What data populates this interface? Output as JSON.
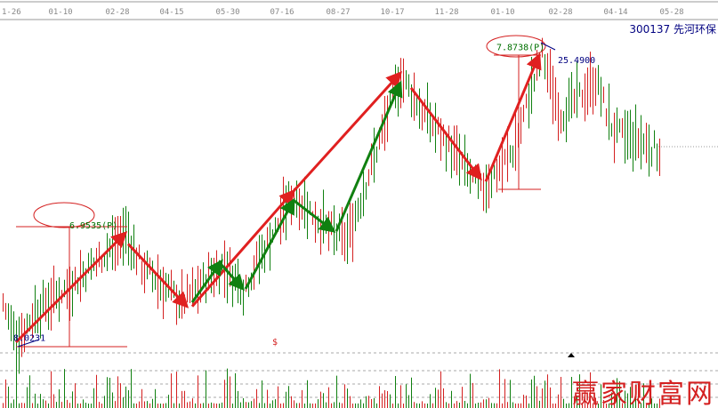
{
  "header": {
    "stock_title": "300137 先河环保"
  },
  "watermark": "赢家财富网",
  "chart_data": {
    "type": "candlestick",
    "x_ticks": [
      "1-26",
      "01-10",
      "02-28",
      "04-15",
      "05-30",
      "07-16",
      "08-27",
      "10-17",
      "11-28",
      "01-10",
      "02-28",
      "04-14",
      "05-28"
    ],
    "price_path": [
      {
        "bar": 1,
        "price": 10.45
      },
      {
        "bar": 6,
        "price": 8.02
      },
      {
        "bar": 13,
        "price": 9.91
      },
      {
        "bar": 27,
        "price": 11.54
      },
      {
        "bar": 47,
        "price": 14.67
      },
      {
        "bar": 53,
        "price": 12.62
      },
      {
        "bar": 68,
        "price": 10.45
      },
      {
        "bar": 83,
        "price": 12.73
      },
      {
        "bar": 91,
        "price": 11.27
      },
      {
        "bar": 110,
        "price": 17.05
      },
      {
        "bar": 123,
        "price": 14.78
      },
      {
        "bar": 130,
        "price": 14.24
      },
      {
        "bar": 150,
        "price": 24.25
      },
      {
        "bar": 157,
        "price": 22.36
      },
      {
        "bar": 167,
        "price": 20.19
      },
      {
        "bar": 180,
        "price": 17.22
      },
      {
        "bar": 192,
        "price": 19.65
      },
      {
        "bar": 203,
        "price": 25.49
      },
      {
        "bar": 210,
        "price": 21.82
      },
      {
        "bar": 223,
        "price": 23.98
      },
      {
        "bar": 230,
        "price": 20.73
      },
      {
        "bar": 240,
        "price": 20.19
      },
      {
        "bar": 247,
        "price": 19.65
      }
    ],
    "annotations": {
      "labels": [
        {
          "text": "6.9535(P)",
          "color": "#007000",
          "bar": 26,
          "price": 14.95
        },
        {
          "text": "8.0231",
          "color": "#000080",
          "bar": 5,
          "price": 8.1
        },
        {
          "text": "7.8738(P)",
          "color": "#007000",
          "bar": 186,
          "price": 25.8
        },
        {
          "text": "25.4900",
          "color": "#000080",
          "bar": 209,
          "price": 25.0
        },
        {
          "text": "$",
          "color": "#d42020",
          "bar": 102,
          "price": 7.85
        }
      ],
      "arrows": [
        {
          "color": "#e02020",
          "from": [
            6,
            8.02
          ],
          "to": [
            47,
            14.67
          ]
        },
        {
          "color": "#e02020",
          "from": [
            48,
            14.0
          ],
          "to": [
            70,
            10.2
          ]
        },
        {
          "color": "#e02020",
          "from": [
            72,
            10.2
          ],
          "to": [
            110,
            17.22
          ]
        },
        {
          "color": "#e02020",
          "from": [
            110,
            17.22
          ],
          "to": [
            150,
            24.4
          ]
        },
        {
          "color": "#e02020",
          "from": [
            154,
            23.5
          ],
          "to": [
            180,
            17.98
          ]
        },
        {
          "color": "#e02020",
          "from": [
            182,
            17.8
          ],
          "to": [
            202,
            25.49
          ]
        },
        {
          "color": "#108010",
          "from": [
            72,
            10.45
          ],
          "to": [
            83,
            12.95
          ]
        },
        {
          "color": "#108010",
          "from": [
            83,
            12.73
          ],
          "to": [
            91,
            11.27
          ]
        },
        {
          "color": "#108010",
          "from": [
            92,
            11.27
          ],
          "to": [
            110,
            16.66
          ]
        },
        {
          "color": "#108010",
          "from": [
            110,
            16.66
          ],
          "to": [
            125,
            14.78
          ]
        },
        {
          "color": "#108010",
          "from": [
            126,
            14.78
          ],
          "to": [
            150,
            23.8
          ]
        }
      ]
    },
    "last_price": 19.92
  }
}
